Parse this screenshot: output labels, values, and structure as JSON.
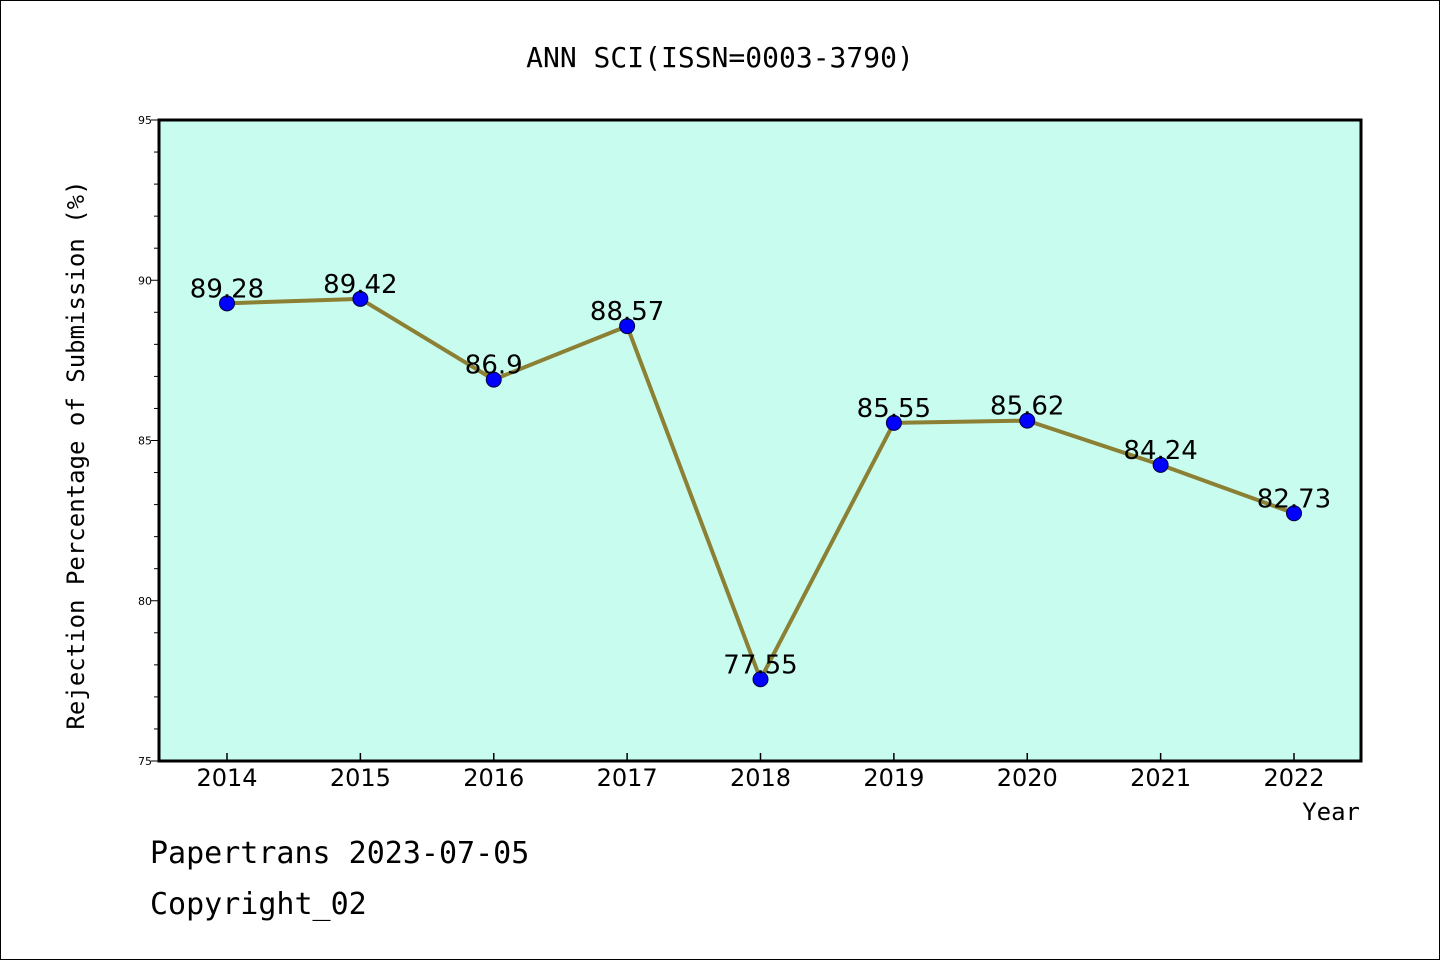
{
  "chart_data": {
    "type": "line",
    "title": "ANN SCI(ISSN=0003-3790)",
    "xlabel": "Year",
    "ylabel": "Rejection Percentage of Submission (%)",
    "categories": [
      "2014",
      "2015",
      "2016",
      "2017",
      "2018",
      "2019",
      "2020",
      "2021",
      "2022"
    ],
    "values": [
      89.28,
      89.42,
      86.9,
      88.57,
      77.55,
      85.55,
      85.62,
      84.24,
      82.73
    ],
    "data_labels": [
      "89.28",
      "89.42",
      "86.9",
      "88.57",
      "77.55",
      "85.55",
      "85.62",
      "84.24",
      "82.73"
    ],
    "ylim": [
      75,
      95
    ],
    "yticks": [
      75,
      80,
      85,
      90,
      95
    ],
    "grid": false,
    "colors": {
      "plot_background": "#c8fcee",
      "line": "#8c8034",
      "marker": "#0000ff"
    }
  },
  "footer": {
    "line1": "Papertrans 2023-07-05",
    "line2": "Copyright_02"
  }
}
